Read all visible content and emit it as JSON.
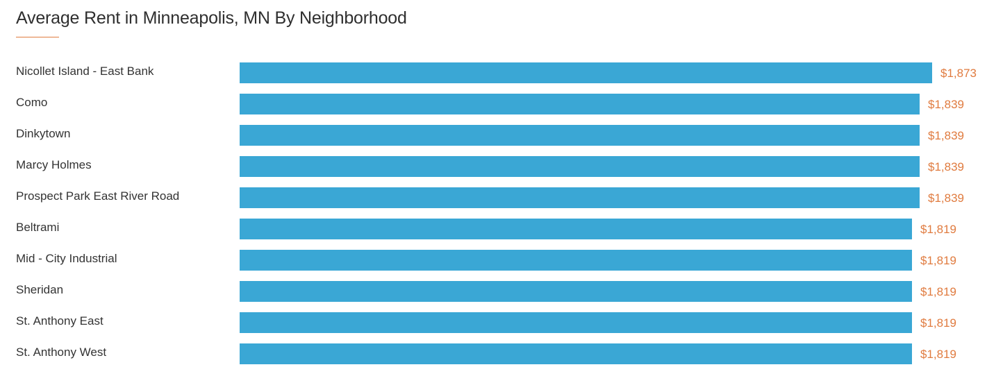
{
  "colors": {
    "bar": "#3aa7d5",
    "value_label": "#e07b3f",
    "title_accent": "#e07b3f",
    "text": "#333333"
  },
  "chart_data": {
    "type": "bar",
    "orientation": "horizontal",
    "title": "Average Rent in Minneapolis, MN By Neighborhood",
    "categories": [
      "Nicollet Island - East Bank",
      "Como",
      "Dinkytown",
      "Marcy Holmes",
      "Prospect Park East River Road",
      "Beltrami",
      "Mid - City Industrial",
      "Sheridan",
      "St. Anthony East",
      "St. Anthony West"
    ],
    "values": [
      1873,
      1839,
      1839,
      1839,
      1839,
      1819,
      1819,
      1819,
      1819,
      1819
    ],
    "value_labels": [
      "$1,873",
      "$1,839",
      "$1,839",
      "$1,839",
      "$1,839",
      "$1,819",
      "$1,819",
      "$1,819",
      "$1,819",
      "$1,819"
    ],
    "xlabel": "",
    "ylabel": "",
    "xlim": [
      0,
      1873
    ],
    "grid": false,
    "legend": "none"
  }
}
